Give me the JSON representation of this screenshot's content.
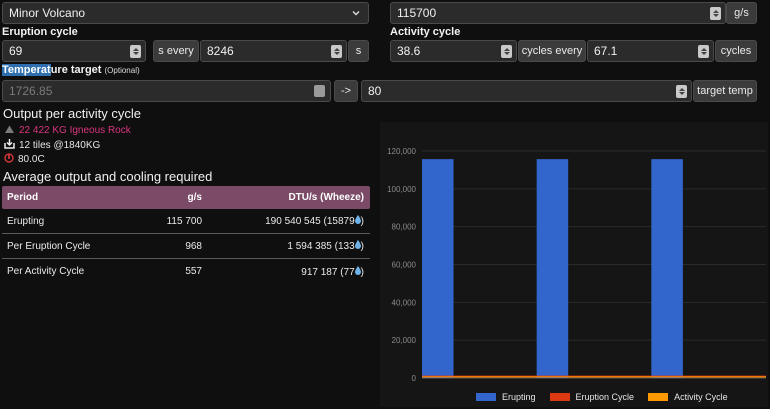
{
  "geyser": {
    "selected": "Minor Volcano",
    "output_value": "115700",
    "output_unit": "g/s"
  },
  "eruption": {
    "label": "Eruption cycle",
    "seconds": "69",
    "s_every": "s every",
    "every_seconds": "8246",
    "unit": "s"
  },
  "activity": {
    "label": "Activity cycle",
    "cycles": "38.6",
    "cycles_every": "cycles every",
    "every_cycles": "67.1",
    "unit": "cycles"
  },
  "temperature": {
    "label_highlight": "Temperat",
    "label_rest": "ure target",
    "optional": "(Optional)",
    "from_placeholder": "1726.85",
    "arrow": "->",
    "target_value": "80",
    "target_unit": "target temp"
  },
  "output": {
    "heading": "Output per activity cycle",
    "lines": [
      {
        "icon": "igneous-rock-icon",
        "text": "22 422 KG Igneous Rock",
        "color": "#d9367f"
      },
      {
        "icon": "tiles-download-icon",
        "text": "12 tiles @1840KG",
        "color": "#eaeaea"
      },
      {
        "icon": "thermometer-icon",
        "text": "80.0C",
        "color": "#eaeaea"
      }
    ]
  },
  "cooling": {
    "heading": "Average output and cooling required",
    "columns": [
      "Period",
      "g/s",
      "DTU/s (Wheeze)"
    ],
    "rows": [
      {
        "period": "Erupting",
        "gs": "115 700",
        "dtu": "190 540 545 (15879"
      },
      {
        "period": "Per Eruption Cycle",
        "gs": "968",
        "dtu": "1 594 385 (133"
      },
      {
        "period": "Per Activity Cycle",
        "gs": "557",
        "dtu": "917 187 (77"
      }
    ],
    "dtu_suffix": ")"
  },
  "colors": {
    "erupting": "#3366cc",
    "eruption_cycle": "#dc3912",
    "activity_cycle": "#ff9900"
  },
  "chart_data": {
    "type": "bar",
    "categories": [
      "",
      "",
      "",
      "",
      "",
      "",
      "",
      "",
      "",
      "",
      "",
      ""
    ],
    "series": [
      {
        "name": "Erupting",
        "values": [
          115700,
          0,
          0,
          0,
          115700,
          0,
          0,
          0,
          115700,
          0,
          0,
          0
        ]
      },
      {
        "name": "Eruption Cycle",
        "values": [
          968,
          968,
          968,
          968,
          968,
          968,
          968,
          968,
          968,
          968,
          968,
          968
        ]
      },
      {
        "name": "Activity Cycle",
        "values": [
          557,
          557,
          557,
          557,
          557,
          557,
          557,
          557,
          557,
          557,
          557,
          557
        ]
      }
    ],
    "ylim": [
      0,
      120000
    ],
    "yticks": [
      "0",
      "20,000",
      "40,000",
      "60,000",
      "80,000",
      "100,000",
      "120,000"
    ],
    "grid": true,
    "legend": "bottom"
  }
}
